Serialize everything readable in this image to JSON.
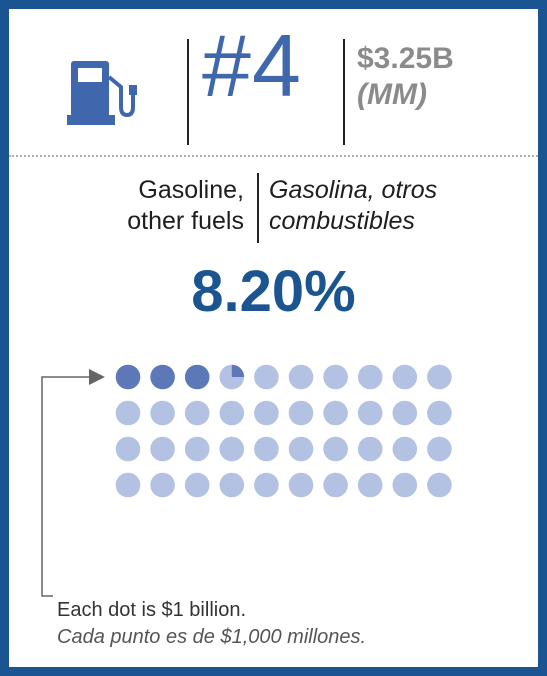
{
  "header": {
    "rank": "#4",
    "amount": "$3.25B",
    "amount_es": "(MM)"
  },
  "category": {
    "english_line1": "Gasoline,",
    "english_line2": "other fuels",
    "spanish_line1": "Gasolina, otros",
    "spanish_line2": "combustibles"
  },
  "percentage": "8.20%",
  "legend": {
    "note_en": "Each dot is $1 billion.",
    "note_es": "Cada punto es de $1,000 millones."
  },
  "icons": [
    "fuel-pump-icon",
    "arrow-right-icon"
  ],
  "colors": {
    "border": "#1a5591",
    "filled_dot": "#5d78b8",
    "empty_dot": "#b3c2e2",
    "rank_text": "#3f67ad",
    "percent_text": "#1a5591",
    "pump_icon": "#3f67ad"
  },
  "chart_data": {
    "type": "waffle",
    "total_dots": 40,
    "columns": 10,
    "rows": 4,
    "value": 3.25,
    "unit_per_dot": 1
  }
}
